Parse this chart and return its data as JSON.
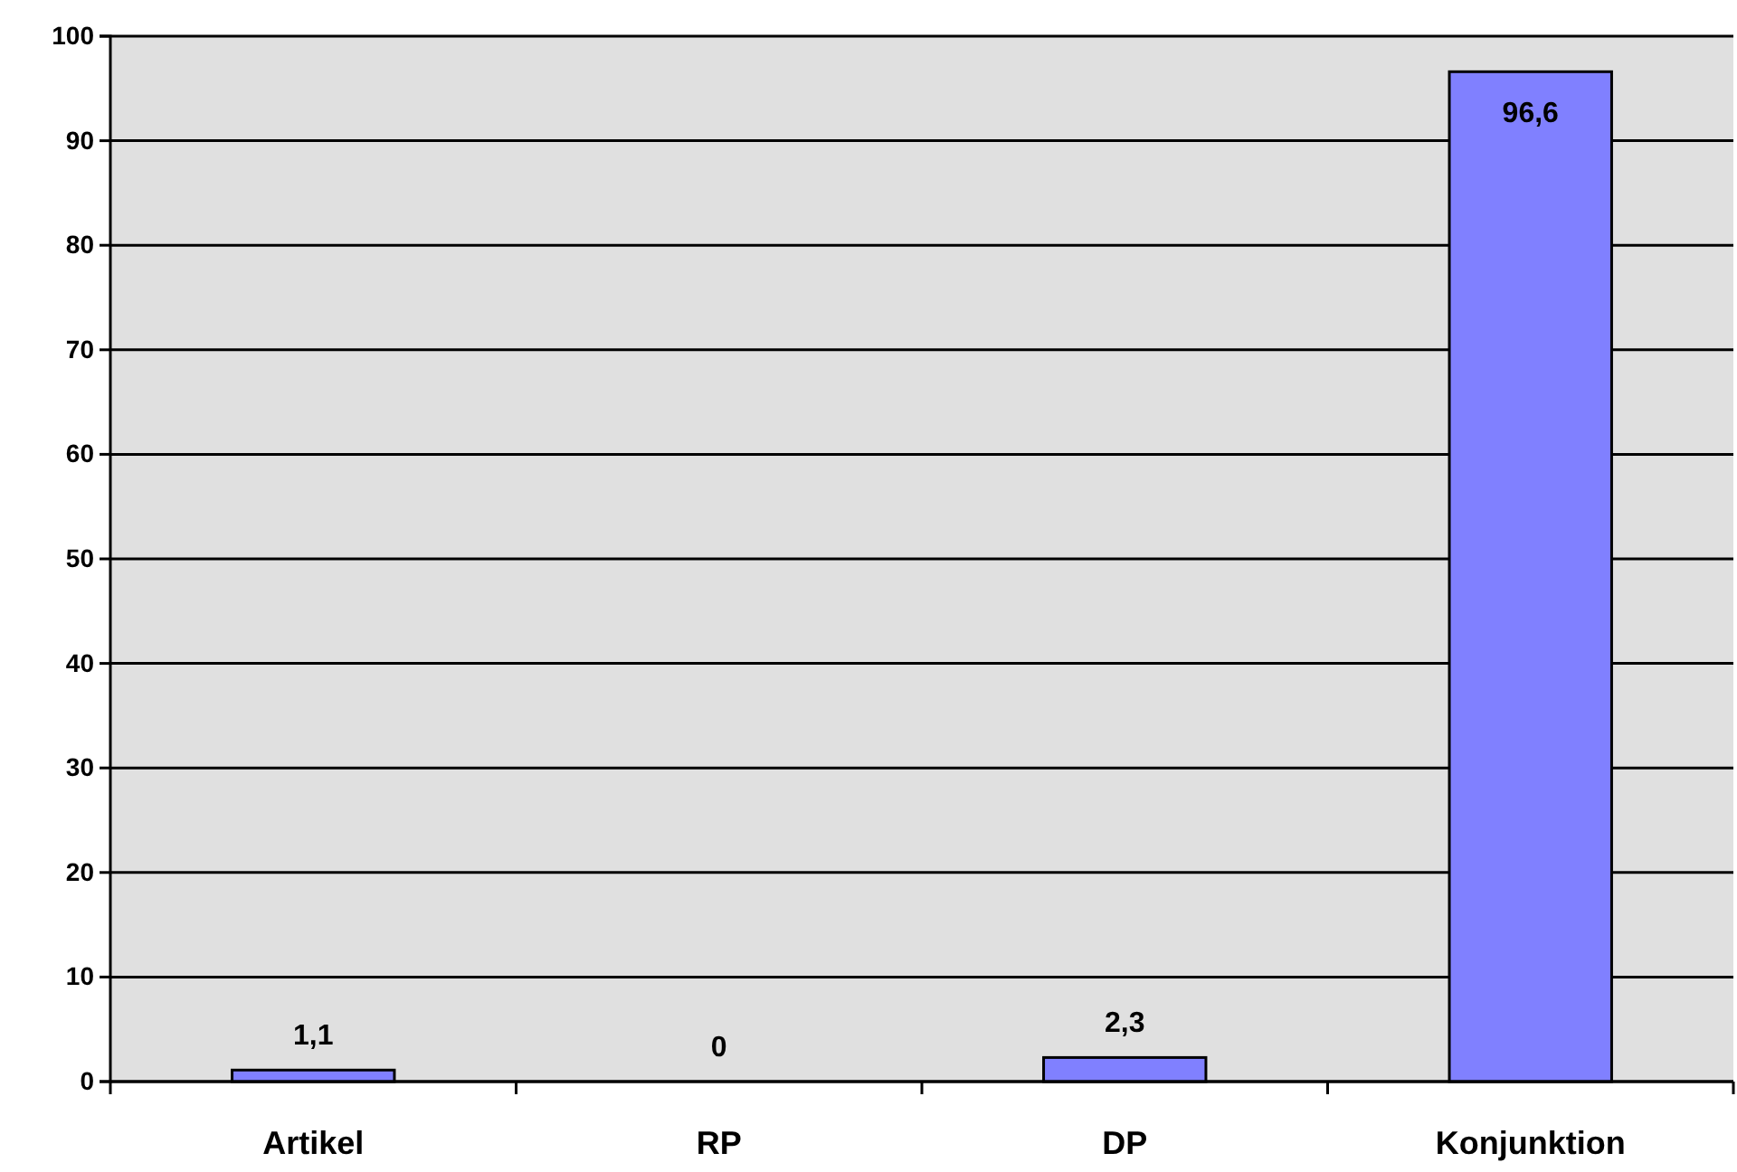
{
  "chart_data": {
    "type": "bar",
    "categories": [
      "Artikel",
      "RP",
      "DP",
      "Konjunktion"
    ],
    "values": [
      1.1,
      0,
      2.3,
      96.6
    ],
    "color": "#8080ff",
    "value_labels": [
      "1,1",
      "0",
      "2,3",
      "96,6"
    ],
    "ylim": [
      0,
      100
    ],
    "yticks": [
      0,
      10,
      20,
      30,
      40,
      50,
      60,
      70,
      80,
      90,
      100
    ],
    "grid": "y"
  }
}
